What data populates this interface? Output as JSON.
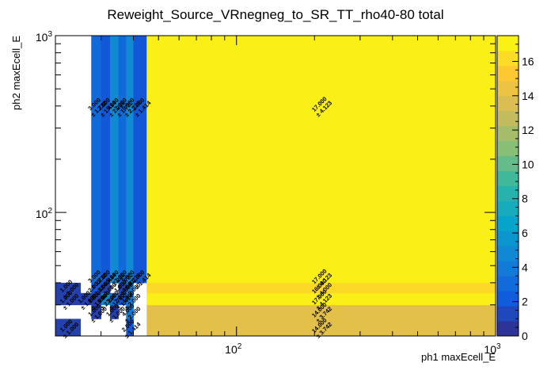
{
  "chart_data": {
    "type": "heatmap",
    "title": "Reweight_Source_VRnegneg_to_SR_TT_rho40-80 total",
    "xlabel": "ph1 maxEcell_E",
    "ylabel": "ph2 maxEcell_E",
    "x_scale": "log",
    "y_scale": "log",
    "xlim": [
      20,
      1000
    ],
    "ylim": [
      20,
      1000
    ],
    "x_bin_edges": [
      20,
      25,
      27.5,
      30,
      32.5,
      35,
      37.5,
      40,
      45,
      1000
    ],
    "y_bin_edges": [
      20,
      25,
      30,
      35,
      40,
      45,
      1000
    ],
    "x_tick_labels": [
      {
        "value": 100,
        "base": "10",
        "exp": "2"
      },
      {
        "value": 1000,
        "base": "10",
        "exp": "3"
      }
    ],
    "y_tick_labels": [
      {
        "value": 100,
        "base": "10",
        "exp": "2"
      },
      {
        "value": 1000,
        "base": "10",
        "exp": "3"
      }
    ],
    "colorbar": {
      "min": 0,
      "max": 17.5,
      "ticks": [
        "0",
        "2",
        "4",
        "6",
        "8",
        "10",
        "12",
        "14",
        "16"
      ]
    },
    "cells": [
      {
        "xi": 0,
        "yi": 0,
        "value": 1,
        "error": "1.000"
      },
      {
        "xi": 2,
        "yi": 1,
        "value": 1,
        "error": "1.000"
      },
      {
        "xi": 4,
        "yi": 1,
        "value": 1,
        "error": "1.000"
      },
      {
        "xi": 6,
        "yi": 0,
        "value": 2,
        "error": "1.414"
      },
      {
        "xi": 6,
        "yi": 1,
        "value": 4,
        "error": "2.000"
      },
      {
        "xi": 8,
        "yi": 0,
        "value": 14,
        "error": "3.742"
      },
      {
        "xi": 8,
        "yi": 1,
        "value": 14,
        "error": "3.742"
      },
      {
        "xi": 0,
        "yi": 2,
        "value": 1,
        "error": "1.000"
      },
      {
        "xi": 1,
        "yi": 2,
        "value": 1,
        "error": "1.000"
      },
      {
        "xi": 2,
        "yi": 2,
        "value": 1,
        "error": "1.000"
      },
      {
        "xi": 3,
        "yi": 2,
        "value": 5,
        "error": "2.236"
      },
      {
        "xi": 4,
        "yi": 2,
        "value": 3,
        "error": "1.732"
      },
      {
        "xi": 5,
        "yi": 2,
        "value": 2,
        "error": "1.414"
      },
      {
        "xi": 6,
        "yi": 2,
        "value": 4,
        "error": "2.000"
      },
      {
        "xi": 8,
        "yi": 2,
        "value": 17,
        "error": "4.123"
      },
      {
        "xi": 0,
        "yi": 3,
        "value": 1,
        "error": "1.000"
      },
      {
        "xi": 2,
        "yi": 3,
        "value": 2,
        "error": "1.414"
      },
      {
        "xi": 3,
        "yi": 3,
        "value": 1,
        "error": "1.000"
      },
      {
        "xi": 5,
        "yi": 3,
        "value": 1,
        "error": "1.000"
      },
      {
        "xi": 6,
        "yi": 3,
        "value": 4,
        "error": "2.000"
      },
      {
        "xi": 8,
        "yi": 3,
        "value": 16,
        "error": "4.000"
      },
      {
        "xi": 2,
        "yi": 4,
        "value": 3,
        "error": "1.732"
      },
      {
        "xi": 3,
        "yi": 4,
        "value": 2,
        "error": "1.414"
      },
      {
        "xi": 4,
        "yi": 4,
        "value": 5,
        "error": "2.236"
      },
      {
        "xi": 5,
        "yi": 4,
        "value": 3,
        "error": "1.732"
      },
      {
        "xi": 6,
        "yi": 4,
        "value": 5,
        "error": "2.236"
      },
      {
        "xi": 7,
        "yi": 4,
        "value": 2,
        "error": "1.414"
      },
      {
        "xi": 8,
        "yi": 4,
        "value": 17,
        "error": "4.123"
      },
      {
        "xi": 2,
        "yi": 5,
        "value": 3,
        "error": "1.732"
      },
      {
        "xi": 3,
        "yi": 5,
        "value": 2,
        "error": "1.414"
      },
      {
        "xi": 4,
        "yi": 5,
        "value": 5,
        "error": "2.236"
      },
      {
        "xi": 5,
        "yi": 5,
        "value": 3,
        "error": "1.732"
      },
      {
        "xi": 6,
        "yi": 5,
        "value": 5,
        "error": "2.236"
      },
      {
        "xi": 7,
        "yi": 5,
        "value": 2,
        "error": "1.414"
      },
      {
        "xi": 8,
        "yi": 5,
        "value": 17,
        "error": "4.123"
      }
    ],
    "palette": [
      "#352a87",
      "#0f5cdd",
      "#1481d6",
      "#06a4ca",
      "#2eb7a4",
      "#87bf77",
      "#d1bb59",
      "#fec832",
      "#f9fb0e"
    ]
  }
}
